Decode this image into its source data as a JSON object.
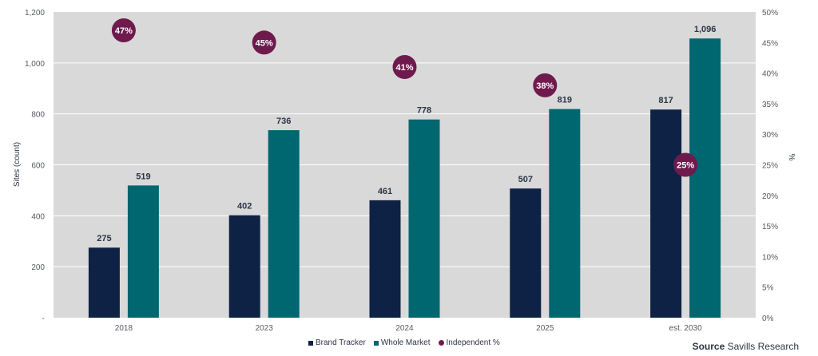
{
  "chart_data": {
    "type": "bar",
    "title": "",
    "categories": [
      "2018",
      "2023",
      "2024",
      "2025",
      "est. 2030"
    ],
    "series": [
      {
        "name": "Brand Tracker",
        "axis": "left",
        "color": "#0e2245",
        "values": [
          275,
          402,
          461,
          507,
          817
        ],
        "labels": [
          "275",
          "402",
          "461",
          "507",
          "817"
        ]
      },
      {
        "name": "Whole Market",
        "axis": "left",
        "color": "#006670",
        "values": [
          519,
          736,
          778,
          819,
          1096
        ],
        "labels": [
          "519",
          "736",
          "778",
          "819",
          "1,096"
        ]
      },
      {
        "name": "Independent %",
        "axis": "right",
        "type": "scatter",
        "color": "#6e1a4d",
        "values": [
          47,
          45,
          41,
          38,
          25
        ],
        "labels": [
          "47%",
          "45%",
          "41%",
          "38%",
          "25%"
        ]
      }
    ],
    "ylabel": "Sites (count)",
    "ylim": [
      0,
      1200
    ],
    "yticks": [
      "-",
      "200",
      "400",
      "600",
      "800",
      "1,000",
      "1,200"
    ],
    "y2label": "%",
    "y2lim": [
      0,
      50
    ],
    "y2ticks": [
      "0%",
      "5%",
      "10%",
      "15%",
      "20%",
      "25%",
      "30%",
      "35%",
      "40%",
      "45%",
      "50%"
    ],
    "grid": true,
    "plot_background": "#d9d9d9",
    "legend_position": "bottom-center"
  },
  "legend": {
    "items": [
      {
        "label": "Brand Tracker",
        "color": "#0e2245"
      },
      {
        "label": "Whole Market",
        "color": "#006670"
      },
      {
        "label": "Independent %",
        "color": "#6e1a4d"
      }
    ]
  },
  "source": {
    "prefix": "Source",
    "text": "Savills Research"
  }
}
